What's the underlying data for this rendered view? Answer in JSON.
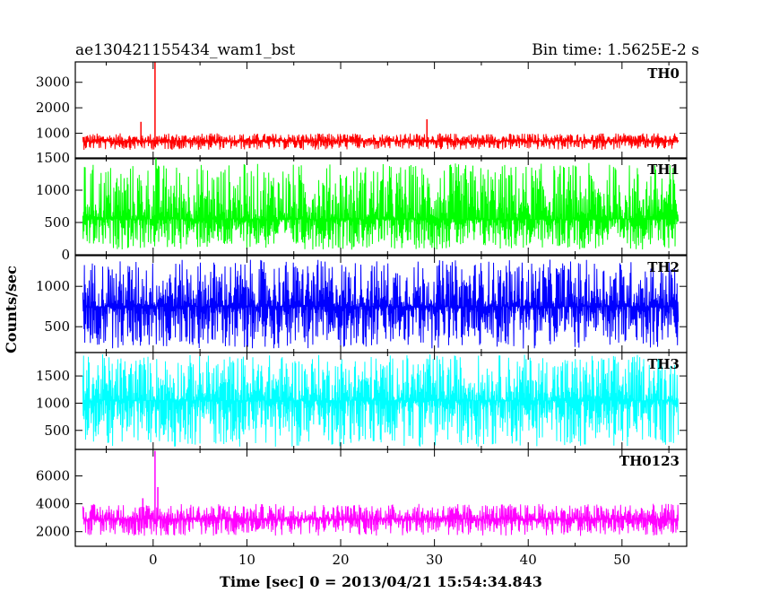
{
  "chart_data": {
    "type": "line",
    "title": "ae130421155434_wam1_bst",
    "subtitle": "Bin time: 1.5625E-2 s",
    "xlabel": "Time [sec] 0 = 2013/04/21 15:54:34.843",
    "ylabel": "Counts/sec",
    "xlim": [
      -8.3,
      56.9
    ],
    "x_ticks": [
      0,
      10,
      20,
      30,
      40,
      50
    ],
    "data_range": [
      -7.5,
      56.0
    ],
    "grid": false,
    "panels": [
      {
        "name": "TH0",
        "color": "#ff0000",
        "ylim": [
          0,
          3800
        ],
        "y_ticks": [
          1000,
          2000,
          3000
        ],
        "baseline": 700,
        "noise_low": 350,
        "noise_high": 1000,
        "spikes": [
          {
            "x": 0.2,
            "y": 3800
          },
          {
            "x": 29.2,
            "y": 1550
          },
          {
            "x": -1.3,
            "y": 1450
          }
        ]
      },
      {
        "name": "TH1",
        "color": "#00ff00",
        "ylim": [
          0,
          1500
        ],
        "y_ticks": [
          0,
          500,
          1000,
          1500
        ],
        "baseline": 550,
        "noise_low": 80,
        "noise_high": 1420,
        "spikes": [
          {
            "x": 0.3,
            "y": 1500
          }
        ]
      },
      {
        "name": "TH2",
        "color": "#0000ff",
        "ylim": [
          180,
          1380
        ],
        "y_ticks": [
          500,
          1000
        ],
        "baseline": 750,
        "noise_low": 230,
        "noise_high": 1330,
        "spikes": []
      },
      {
        "name": "TH3",
        "color": "#00ffff",
        "ylim": [
          150,
          1930
        ],
        "y_ticks": [
          500,
          1000,
          1500
        ],
        "baseline": 1050,
        "noise_low": 200,
        "noise_high": 1900,
        "spikes": []
      },
      {
        "name": "TH0123",
        "color": "#ff00ff",
        "ylim": [
          950,
          7900
        ],
        "y_ticks": [
          2000,
          4000,
          6000
        ],
        "baseline": 2900,
        "noise_low": 1700,
        "noise_high": 4000,
        "spikes": [
          {
            "x": 0.2,
            "y": 7800
          },
          {
            "x": 0.5,
            "y": 5200
          },
          {
            "x": -1.1,
            "y": 4400
          }
        ]
      }
    ]
  }
}
